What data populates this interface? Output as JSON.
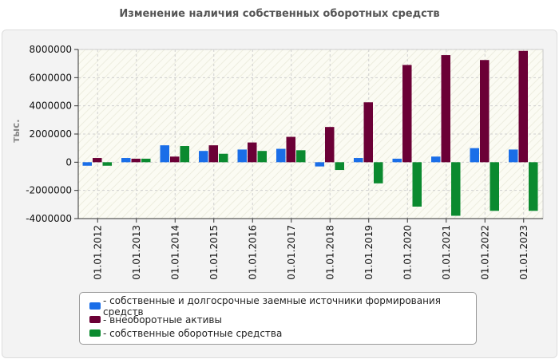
{
  "chart_data": {
    "type": "bar",
    "title": "Изменение наличия собственных оборотных средств",
    "ylabel": "тыс.",
    "xlabel": "",
    "ylim": [
      -4000000,
      8000000
    ],
    "yticks": [
      "8000000",
      "6000000",
      "4000000",
      "2000000",
      "0",
      "-2000000",
      "-4000000"
    ],
    "ytick_values": [
      8000000,
      6000000,
      4000000,
      2000000,
      0,
      -2000000,
      -4000000
    ],
    "categories": [
      "01.01.2012",
      "01.01.2013",
      "01.01.2014",
      "01.01.2015",
      "01.01.2016",
      "01.01.2017",
      "01.01.2018",
      "01.01.2019",
      "01.01.2020",
      "01.01.2021",
      "01.01.2022",
      "01.01.2023"
    ],
    "grid": true,
    "legend_position": "bottom",
    "series": [
      {
        "name": "- собственные и долгосрочные заемные источники формирования средств",
        "color": "#1a6ee8",
        "values": [
          -250000,
          300000,
          1200000,
          800000,
          900000,
          950000,
          -300000,
          300000,
          250000,
          400000,
          1000000,
          900000
        ]
      },
      {
        "name": "- внеоборотные активы",
        "color": "#6b0036",
        "values": [
          300000,
          250000,
          400000,
          1200000,
          1400000,
          1800000,
          2500000,
          4250000,
          6900000,
          7600000,
          7250000,
          7900000
        ]
      },
      {
        "name": "- собственные оборотные средства",
        "color": "#0b8a2f",
        "values": [
          -250000,
          250000,
          1150000,
          600000,
          800000,
          850000,
          -550000,
          -1500000,
          -3150000,
          -3800000,
          -3450000,
          -3450000
        ]
      }
    ]
  }
}
